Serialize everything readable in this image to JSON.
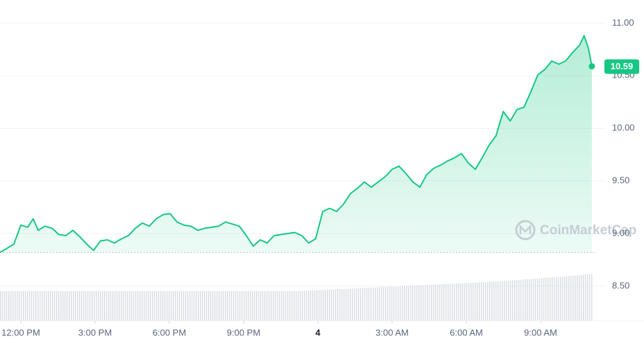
{
  "chart_data": {
    "type": "area",
    "x": [
      -0.84,
      -0.62,
      -0.28,
      0,
      0.28,
      0.5,
      0.7,
      0.98,
      1.26,
      1.54,
      1.82,
      2.1,
      2.38,
      2.66,
      2.94,
      3.22,
      3.5,
      3.78,
      4.07,
      4.35,
      4.63,
      4.91,
      5.19,
      5.47,
      5.75,
      6.03,
      6.31,
      6.59,
      6.87,
      7.15,
      7.43,
      7.71,
      7.99,
      8.27,
      8.55,
      8.83,
      9.11,
      9.39,
      9.67,
      9.95,
      10.23,
      10.51,
      10.79,
      11.07,
      11.35,
      11.63,
      11.91,
      12.2,
      12.48,
      12.76,
      13.04,
      13.32,
      13.6,
      13.88,
      14.16,
      14.44,
      14.72,
      15.0,
      15.28,
      15.56,
      15.84,
      16.12,
      16.4,
      16.68,
      16.96,
      17.24,
      17.52,
      17.8,
      18.08,
      18.36,
      18.64,
      18.92,
      19.2,
      19.49,
      19.77,
      20.05,
      20.33,
      20.61,
      20.89,
      21.17,
      21.45,
      21.73,
      22.01,
      22.29,
      22.57,
      22.76,
      22.93,
      23.07
    ],
    "values": [
      8.82,
      8.85,
      8.9,
      9.08,
      9.06,
      9.14,
      9.03,
      9.07,
      9.05,
      8.99,
      8.98,
      9.03,
      8.97,
      8.9,
      8.84,
      8.93,
      8.94,
      8.91,
      8.95,
      8.98,
      9.05,
      9.1,
      9.07,
      9.14,
      9.18,
      9.19,
      9.11,
      9.08,
      9.07,
      9.03,
      9.05,
      9.06,
      9.07,
      9.11,
      9.09,
      9.07,
      8.98,
      8.88,
      8.94,
      8.91,
      8.98,
      8.99,
      9,
      9.01,
      8.98,
      8.91,
      8.95,
      9.21,
      9.24,
      9.21,
      9.28,
      9.38,
      9.43,
      9.49,
      9.44,
      9.49,
      9.54,
      9.61,
      9.64,
      9.57,
      9.49,
      9.44,
      9.56,
      9.62,
      9.65,
      9.69,
      9.72,
      9.76,
      9.67,
      9.61,
      9.72,
      9.84,
      9.93,
      10.16,
      10.07,
      10.18,
      10.2,
      10.35,
      10.51,
      10.56,
      10.64,
      10.61,
      10.64,
      10.72,
      10.79,
      10.88,
      10.76,
      10.59
    ],
    "color": "#16c784",
    "down_color": "#ea3943",
    "baseline": 8.82,
    "current_price": 10.59,
    "xlim": [
      -0.84,
      23.27
    ],
    "xticks": [
      {
        "value": 0,
        "label": "12:00 PM"
      },
      {
        "value": 3,
        "label": "3:00 PM"
      },
      {
        "value": 6,
        "label": "6:00 PM"
      },
      {
        "value": 9,
        "label": "9:00 PM"
      },
      {
        "value": 12,
        "label": "4"
      },
      {
        "value": 15,
        "label": "3:00 AM"
      },
      {
        "value": 18,
        "label": "6:00 AM"
      },
      {
        "value": 21,
        "label": "9:00 AM"
      }
    ],
    "ylim": [
      8.17,
      11.22
    ],
    "yticks": [
      {
        "value": 8.5,
        "label": "8.50"
      },
      {
        "value": 9,
        "label": "9.00"
      },
      {
        "value": 9.5,
        "label": "9.50"
      },
      {
        "value": 10,
        "label": "10.00"
      },
      {
        "value": 10.5,
        "label": "10.50"
      },
      {
        "value": 11,
        "label": "11.00"
      }
    ],
    "grid": true,
    "watermark": "CoinMarketCap"
  }
}
